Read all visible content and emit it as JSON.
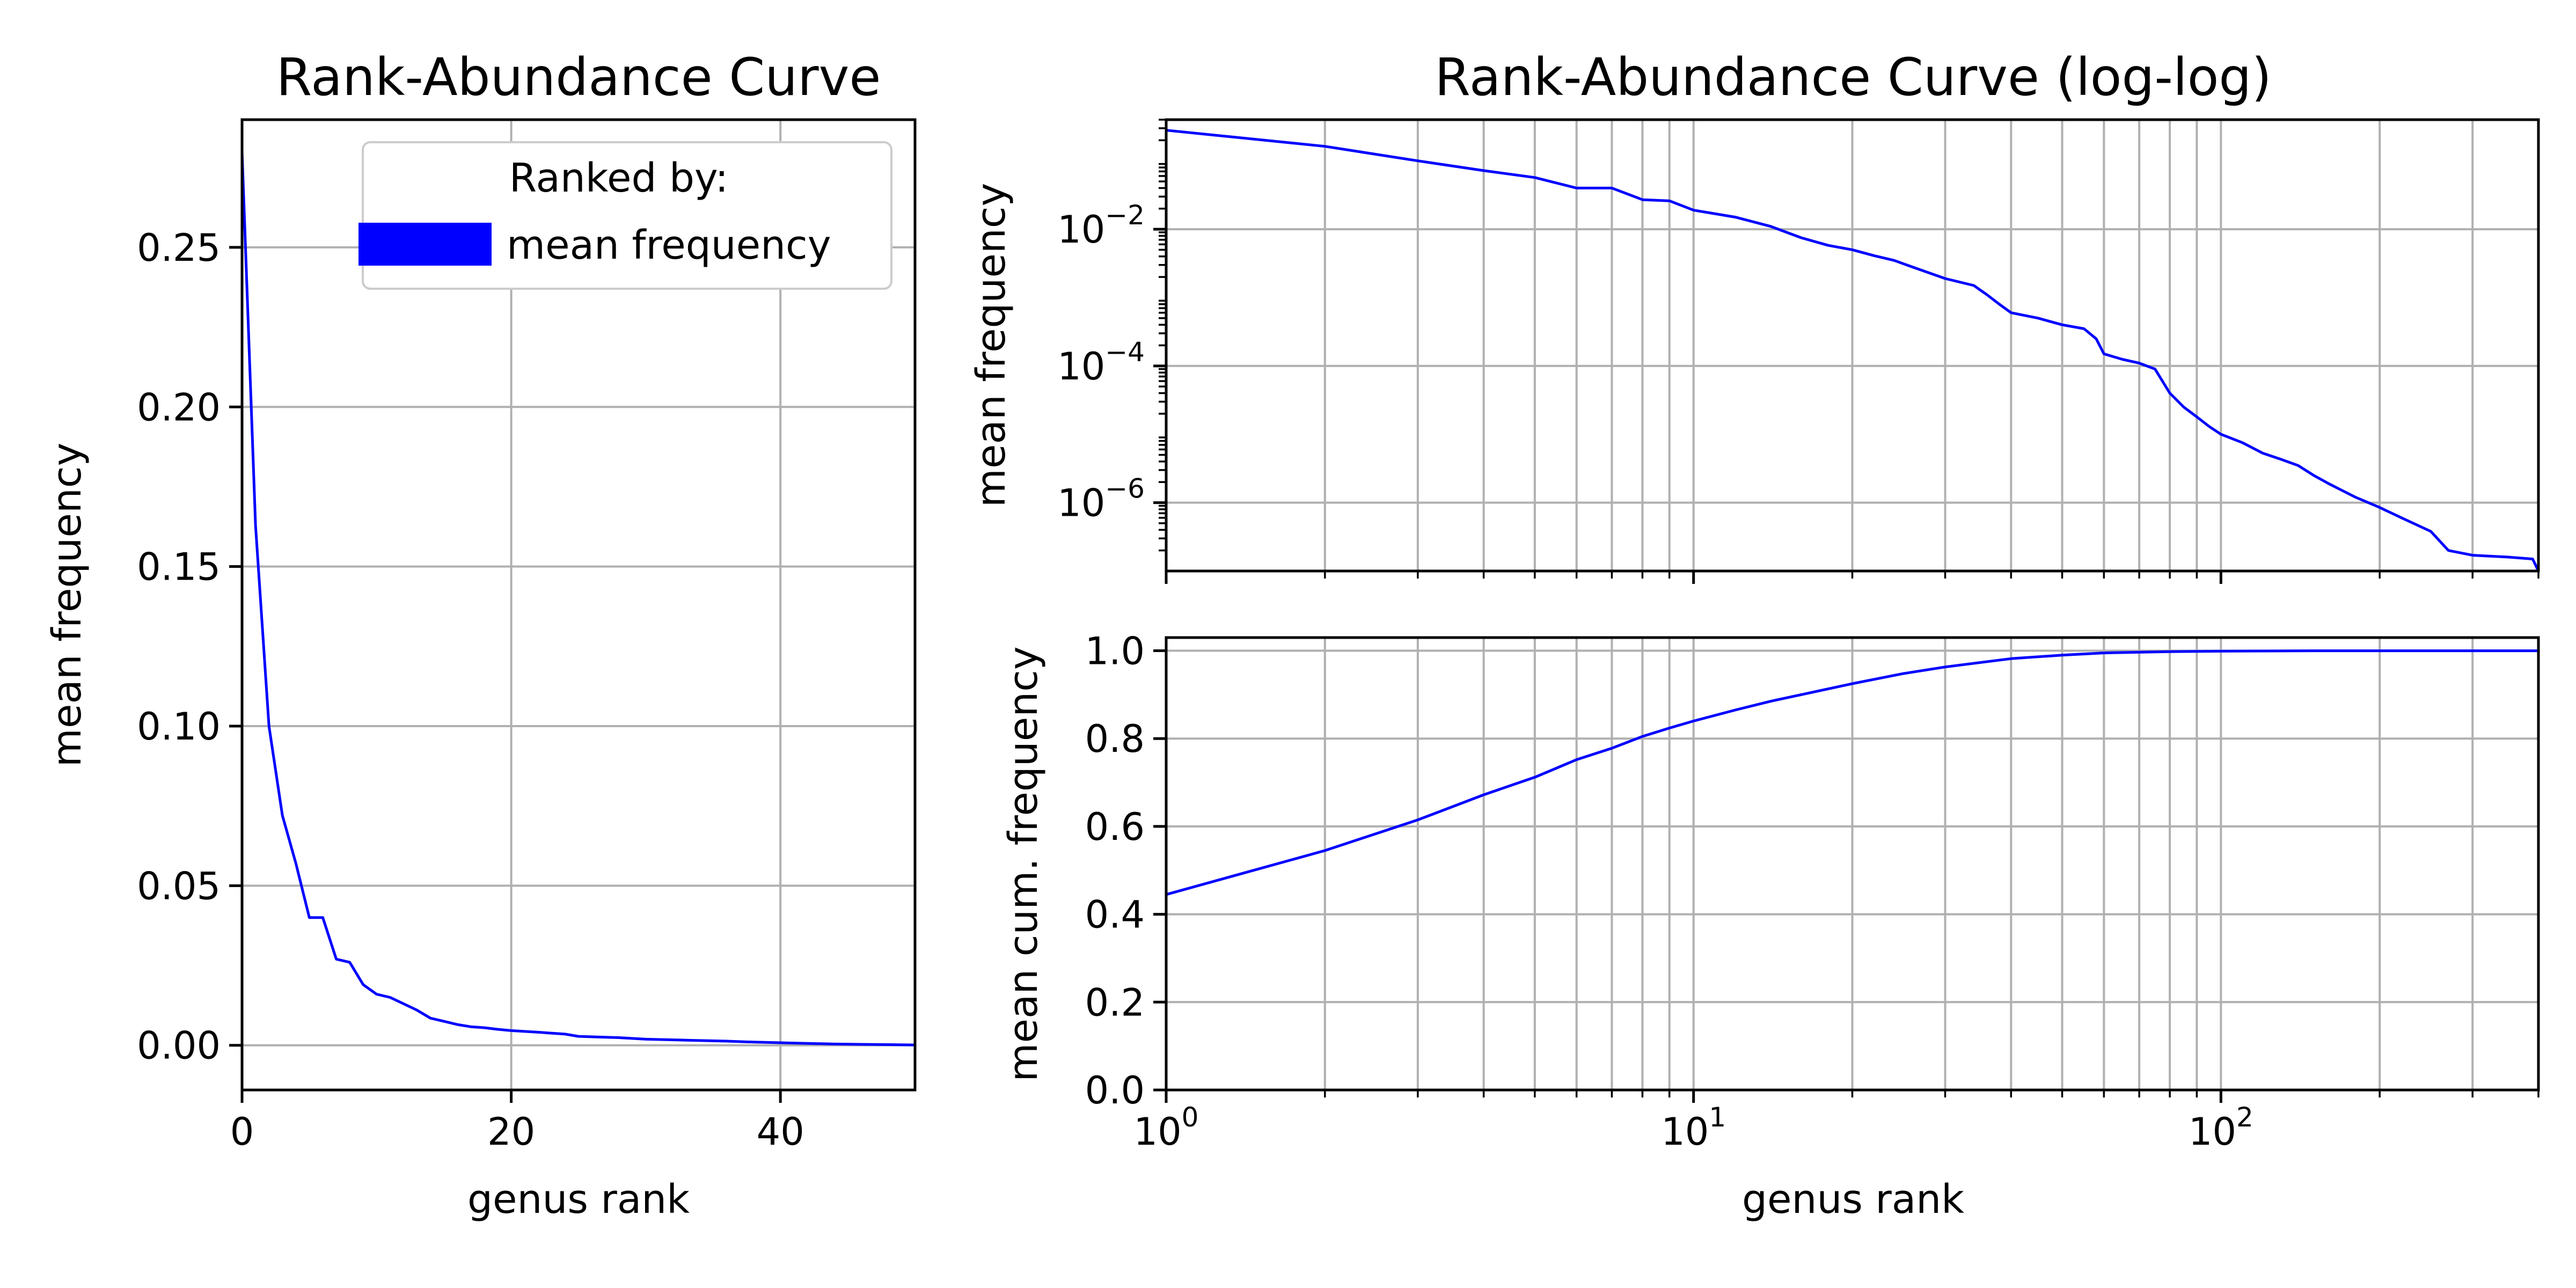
{
  "colors": {
    "series": "#0000ff",
    "grid": "#b0b0b0",
    "axes": "#000000",
    "background": "#ffffff"
  },
  "chart_data": [
    {
      "type": "line",
      "title": "Rank-Abundance Curve",
      "xlabel": "genus rank",
      "ylabel": "mean frequency",
      "xlim": [
        0,
        50
      ],
      "ylim": [
        -0.014,
        0.29
      ],
      "xticks": [
        0,
        20,
        40
      ],
      "xtick_labels": [
        "0",
        "20",
        "40"
      ],
      "yticks": [
        0.0,
        0.05,
        0.1,
        0.15,
        0.2,
        0.25
      ],
      "ytick_labels": [
        "0.00",
        "0.05",
        "0.10",
        "0.15",
        "0.20",
        "0.25"
      ],
      "grid": true,
      "legend": {
        "title": "Ranked by:",
        "entries": [
          "mean frequency"
        ],
        "placement": "top-right"
      },
      "series": [
        {
          "name": "mean frequency",
          "x": [
            0,
            1,
            2,
            3,
            4,
            5,
            6,
            7,
            8,
            9,
            10,
            11,
            12,
            13,
            14,
            15,
            16,
            17,
            18,
            19,
            20,
            22,
            24,
            25,
            28,
            30,
            33,
            36,
            38,
            40,
            42,
            44,
            46,
            48,
            50
          ],
          "y": [
            0.28,
            0.163,
            0.1,
            0.072,
            0.057,
            0.04,
            0.04,
            0.027,
            0.026,
            0.019,
            0.016,
            0.015,
            0.013,
            0.011,
            0.0085,
            0.0075,
            0.0065,
            0.0058,
            0.0055,
            0.005,
            0.0046,
            0.0041,
            0.0035,
            0.0028,
            0.0024,
            0.0019,
            0.0016,
            0.0013,
            0.001,
            0.0008,
            0.0006,
            0.0004,
            0.0003,
            0.0002,
            0.0001
          ]
        }
      ]
    },
    {
      "type": "line",
      "title": "Rank-Abundance Curve (log-log)",
      "xlabel": "",
      "ylabel": "mean frequency",
      "xscale": "log",
      "yscale": "log",
      "xlim": [
        1,
        400
      ],
      "ylim": [
        1e-07,
        0.4
      ],
      "yticks": [
        0.01,
        0.0001,
        1e-06
      ],
      "ytick_labels": [
        {
          "base": "10",
          "exp": "−2"
        },
        {
          "base": "10",
          "exp": "−4"
        },
        {
          "base": "10",
          "exp": "−6"
        }
      ],
      "grid": true,
      "series": [
        {
          "name": "mean frequency",
          "x": [
            1,
            2,
            3,
            4,
            5,
            6,
            7,
            8,
            9,
            10,
            12,
            14,
            16,
            18,
            20,
            22,
            24,
            26,
            30,
            34,
            36,
            38,
            40,
            45,
            50,
            55,
            58,
            60,
            65,
            70,
            75,
            80,
            85,
            90,
            95,
            100,
            110,
            120,
            130,
            140,
            150,
            160,
            170,
            180,
            200,
            220,
            250,
            270,
            300,
            350,
            390,
            400
          ],
          "y": [
            0.28,
            0.163,
            0.1,
            0.072,
            0.057,
            0.04,
            0.04,
            0.027,
            0.026,
            0.019,
            0.015,
            0.011,
            0.0075,
            0.0058,
            0.005,
            0.0041,
            0.0035,
            0.0028,
            0.0019,
            0.0015,
            0.0011,
            0.0008,
            0.0006,
            0.0005,
            0.0004,
            0.00035,
            0.00025,
            0.00015,
            0.000125,
            0.00011,
            9e-05,
            4e-05,
            2.5e-05,
            1.8e-05,
            1.3e-05,
            1e-05,
            7.5e-06,
            5.3e-06,
            4.3e-06,
            3.5e-06,
            2.5e-06,
            1.9e-06,
            1.5e-06,
            1.2e-06,
            8.5e-07,
            6e-07,
            3.8e-07,
            2e-07,
            1.7e-07,
            1.6e-07,
            1.5e-07,
            1e-07
          ]
        }
      ]
    },
    {
      "type": "line",
      "title": "",
      "xlabel": "genus rank",
      "ylabel": "mean cum. frequency",
      "xscale": "log",
      "xlim": [
        1,
        400
      ],
      "ylim": [
        0,
        1.03
      ],
      "xticks": [
        1,
        10,
        100
      ],
      "xtick_labels": [
        {
          "base": "10",
          "exp": "0"
        },
        {
          "base": "10",
          "exp": "1"
        },
        {
          "base": "10",
          "exp": "2"
        }
      ],
      "yticks": [
        0.0,
        0.2,
        0.4,
        0.6,
        0.8,
        1.0
      ],
      "ytick_labels": [
        "0.0",
        "0.2",
        "0.4",
        "0.6",
        "0.8",
        "1.0"
      ],
      "grid": true,
      "series": [
        {
          "name": "mean cum. frequency",
          "x": [
            1,
            2,
            3,
            4,
            5,
            6,
            7,
            8,
            9,
            10,
            12,
            14,
            16,
            20,
            25,
            30,
            40,
            50,
            60,
            80,
            100,
            150,
            200,
            300,
            400
          ],
          "y": [
            0.445,
            0.545,
            0.615,
            0.672,
            0.712,
            0.752,
            0.778,
            0.805,
            0.824,
            0.84,
            0.865,
            0.885,
            0.9,
            0.925,
            0.948,
            0.963,
            0.982,
            0.99,
            0.995,
            0.998,
            0.999,
            1.0,
            1.0,
            1.0,
            1.0
          ]
        }
      ]
    }
  ]
}
